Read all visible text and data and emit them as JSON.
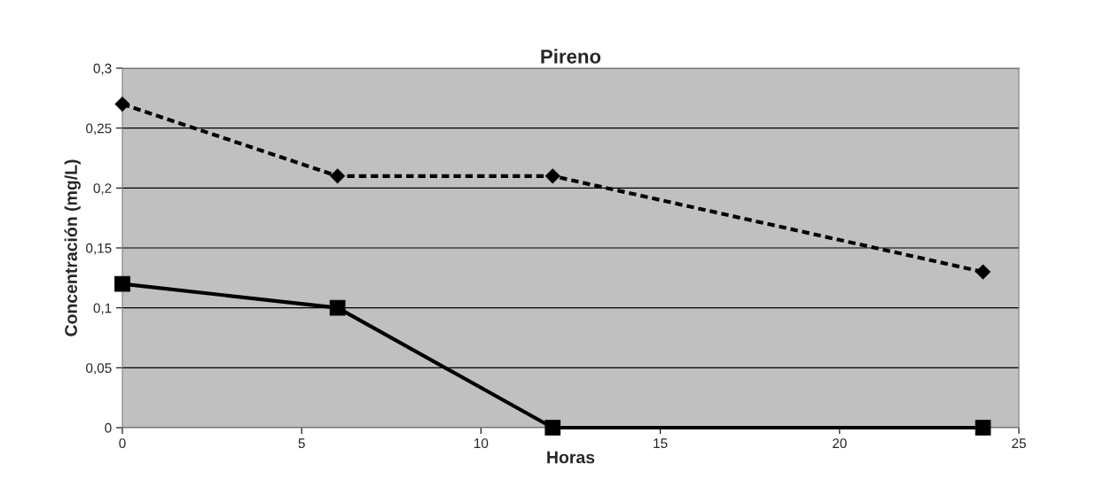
{
  "chart_data": {
    "type": "line",
    "title": "Pireno",
    "xlabel": "Horas",
    "ylabel": "Concentración (mg/L)",
    "x": [
      0,
      6,
      12,
      24
    ],
    "series": [
      {
        "color": "#000000",
        "values": [
          0.27,
          0.21,
          0.21,
          0.13
        ],
        "marker": "diamond",
        "line_style": "dashed"
      },
      {
        "color": "#000000",
        "values": [
          0.12,
          0.1,
          0,
          0
        ],
        "marker": "square",
        "line_style": "solid"
      }
    ],
    "xlim": [
      0,
      25
    ],
    "xticks": [
      0,
      5,
      10,
      15,
      20,
      25
    ],
    "ylim": [
      0,
      0.3
    ],
    "yticks": [
      0,
      {
        "value": 0.05,
        "label": "0,05"
      },
      {
        "value": 0.1,
        "label": "0,1"
      },
      {
        "value": 0.15,
        "label": "0,15"
      },
      {
        "value": 0.2,
        "label": "0,2"
      },
      {
        "value": 0.25,
        "label": "0,25"
      },
      {
        "value": 0.3,
        "label": "0,3"
      }
    ],
    "grid": "y"
  }
}
